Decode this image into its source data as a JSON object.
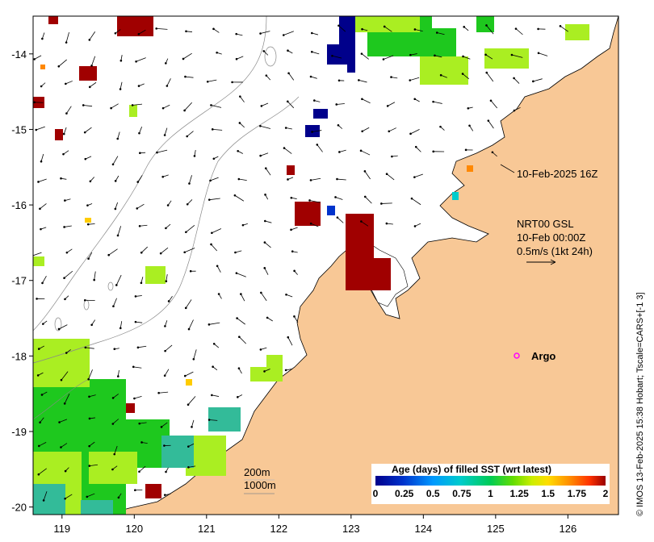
{
  "map": {
    "xaxis": {
      "ticks": [
        "119",
        "120",
        "121",
        "122",
        "123",
        "124",
        "125",
        "126"
      ],
      "values": [
        119,
        120,
        121,
        122,
        123,
        124,
        125,
        126
      ],
      "range": [
        118.6,
        126.7
      ]
    },
    "yaxis": {
      "ticks": [
        "-14",
        "-15",
        "-16",
        "-17",
        "-18",
        "-19",
        "-20"
      ],
      "values": [
        -14,
        -15,
        -16,
        -17,
        -18,
        -19,
        -20
      ],
      "range": [
        -20.1,
        -13.5
      ]
    },
    "timestamp_label": "10-Feb-2025 16Z",
    "current_info": {
      "line1": "NRT00 GSL",
      "line2": "10-Feb 00:00Z",
      "line3": "0.5m/s (1kt 24h)"
    },
    "argo_label": "Argo",
    "isobath_labels": {
      "shallow": "200m",
      "deep": "1000m"
    },
    "colorbar": {
      "title": "Age (days) of filled SST (wrt latest)",
      "tick_labels": [
        "0",
        "0.25",
        "0.5",
        "0.75",
        "1",
        "1.25",
        "1.5",
        "1.75",
        "2"
      ],
      "colors": [
        "#00008b",
        "#0033cc",
        "#0099ff",
        "#00cccc",
        "#00cc66",
        "#33cc00",
        "#99dd00",
        "#ffee00",
        "#ffcc00",
        "#ff8800",
        "#ff3300",
        "#aa0000"
      ]
    },
    "credit": "© IMOS 13-Feb-2025 15:38 Hobart; Tscale=CARS+[-1 3]",
    "colors": {
      "land": "#f8c896",
      "ocean": "#ffffff",
      "dark_red": "#a00000",
      "navy": "#00008b",
      "green": "#1ec81e",
      "lime": "#aaee22",
      "teal": "#33bb99",
      "argo": "#ff00ff"
    }
  }
}
